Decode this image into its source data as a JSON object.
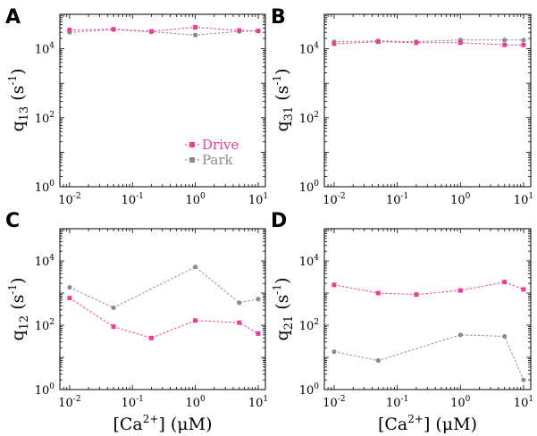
{
  "colors": {
    "drive": "#ee3d96",
    "park": "#8c8c8c"
  },
  "legend": {
    "drive_label": "Drive",
    "park_label": "Park"
  },
  "xlabel_text": {
    "prefix": "[Ca",
    "sup": "2+",
    "suffix": "] (μM)"
  },
  "x_tick_labels": [
    {
      "base": "10",
      "exp": "-2"
    },
    {
      "base": "10",
      "exp": "-1"
    },
    {
      "base": "10",
      "exp": "0"
    },
    {
      "base": "10",
      "exp": "1"
    }
  ],
  "y_tick_labels": [
    {
      "base": "10",
      "exp": "0"
    },
    {
      "base": "10",
      "exp": "2"
    },
    {
      "base": "10",
      "exp": "4"
    }
  ],
  "panels": [
    {
      "letter": "A",
      "ylabel": {
        "q": "q",
        "sub": "13",
        "unit": " (s",
        "sup": "-1",
        "close": ")"
      }
    },
    {
      "letter": "B",
      "ylabel": {
        "q": "q",
        "sub": "31",
        "unit": " (s",
        "sup": "-1",
        "close": ")"
      }
    },
    {
      "letter": "C",
      "ylabel": {
        "q": "q",
        "sub": "12",
        "unit": " (s",
        "sup": "-1",
        "close": ")"
      }
    },
    {
      "letter": "D",
      "ylabel": {
        "q": "q",
        "sub": "21",
        "unit": " (s",
        "sup": "-1",
        "close": ")"
      }
    }
  ],
  "chart_data": [
    {
      "type": "line",
      "panel": "A",
      "xscale": "log",
      "yscale": "log",
      "xlim": [
        0.007,
        13
      ],
      "ylim": [
        1,
        100000
      ],
      "x": [
        0.01,
        0.05,
        0.2,
        1,
        5,
        10
      ],
      "series": [
        {
          "name": "Drive",
          "marker": "square",
          "values": [
            35000,
            37000,
            32000,
            42000,
            34000,
            33000
          ]
        },
        {
          "name": "Park",
          "marker": "circle",
          "values": [
            30000,
            36000,
            31000,
            25000,
            32000,
            33000
          ]
        }
      ],
      "legend": "lower-right",
      "grid": false
    },
    {
      "type": "line",
      "panel": "B",
      "xscale": "log",
      "yscale": "log",
      "xlim": [
        0.007,
        13
      ],
      "ylim": [
        1,
        100000
      ],
      "x": [
        0.01,
        0.05,
        0.2,
        1,
        5,
        10
      ],
      "series": [
        {
          "name": "Drive",
          "marker": "square",
          "values": [
            14000,
            16000,
            15000,
            15000,
            13000,
            13000
          ]
        },
        {
          "name": "Park",
          "marker": "circle",
          "values": [
            16000,
            17000,
            16000,
            18000,
            18000,
            18000
          ]
        }
      ],
      "grid": false
    },
    {
      "type": "line",
      "panel": "C",
      "xscale": "log",
      "yscale": "log",
      "xlim": [
        0.007,
        13
      ],
      "ylim": [
        1,
        100000
      ],
      "x": [
        0.01,
        0.05,
        0.2,
        1,
        5,
        10
      ],
      "series": [
        {
          "name": "Drive",
          "marker": "square",
          "values": [
            700,
            90,
            40,
            140,
            120,
            55
          ]
        },
        {
          "name": "Park",
          "marker": "circle",
          "values": [
            1500,
            350,
            null,
            6500,
            500,
            650
          ]
        }
      ],
      "xlabel": "[Ca2+] (μM)",
      "grid": false
    },
    {
      "type": "line",
      "panel": "D",
      "xscale": "log",
      "yscale": "log",
      "xlim": [
        0.007,
        13
      ],
      "ylim": [
        1,
        100000
      ],
      "x": [
        0.01,
        0.05,
        0.2,
        1,
        5,
        10
      ],
      "series": [
        {
          "name": "Drive",
          "marker": "square",
          "values": [
            1800,
            1000,
            900,
            1200,
            2200,
            1300
          ]
        },
        {
          "name": "Park",
          "marker": "circle",
          "values": [
            15,
            8,
            null,
            50,
            45,
            2
          ]
        }
      ],
      "xlabel": "[Ca2+] (μM)",
      "grid": false
    }
  ]
}
